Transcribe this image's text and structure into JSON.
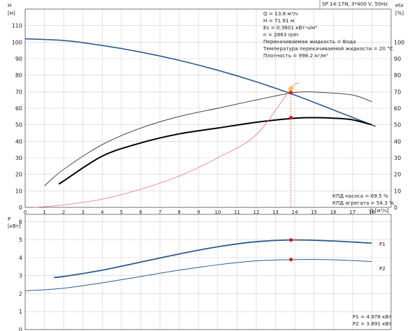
{
  "header": {
    "pump": "SP 14-17N, 3*400 V, 50Hz"
  },
  "info": [
    "Q = 13.8 м³/ч",
    "H = 71.91 м",
    "Es = 0.3601 кВт·ч/м³",
    "n = 2863 rpm",
    "Перекачиваемая жидкость = Вода",
    "Температура перекачиваемой жидкости = 20 °C",
    "Плотность = 998.2 кг/м³"
  ],
  "efficiency_labels": [
    "КПД насоса = 69.5 %",
    "КПД агрегата = 54.3 %"
  ],
  "power_labels": [
    "P1 = 4.978 кВт",
    "P2 = 3.891 кВт"
  ],
  "colors": {
    "head": "#2a5b8f",
    "efficiency": "#000000",
    "efficiency_thin": "#333333",
    "system": "#f08080",
    "power": "#2a5b8f",
    "duty_point": "#e0141e",
    "duty_marker": "#ffd000"
  },
  "chart_data": [
    {
      "type": "line",
      "xlabel": "Q [м³/ч]",
      "ylabel": "H [м]",
      "y2label": "eta [%]",
      "xlim": [
        0,
        19
      ],
      "ylim": [
        0,
        120
      ],
      "x_ticks": [
        0,
        1,
        2,
        3,
        4,
        5,
        6,
        7,
        8,
        9,
        10,
        11,
        12,
        13,
        14,
        15,
        16,
        17,
        18
      ],
      "y_ticks": [
        0,
        10,
        20,
        30,
        40,
        50,
        60,
        70,
        80,
        90,
        100,
        110
      ],
      "y2_ticks": [
        0,
        10,
        20,
        30,
        40,
        50,
        60,
        70,
        80,
        90,
        100
      ],
      "grid": true,
      "series": [
        {
          "role": "head",
          "x": [
            0,
            2,
            4,
            6,
            8,
            10,
            12,
            14,
            16,
            18.2
          ],
          "y": [
            102,
            101,
            98,
            94,
            89,
            83,
            76,
            68,
            59,
            49
          ]
        },
        {
          "role": "pump_efficiency",
          "x": [
            1,
            2,
            4,
            6,
            8,
            10,
            12,
            14,
            15.5,
            17,
            18
          ],
          "y": [
            13,
            23,
            38,
            48,
            55,
            60,
            65,
            69.5,
            69.5,
            68,
            64
          ]
        },
        {
          "role": "total_efficiency",
          "x": [
            1.8,
            2,
            4,
            6,
            8,
            10,
            12,
            14,
            15,
            16,
            17,
            18
          ],
          "y": [
            14.5,
            16,
            31,
            39,
            44.5,
            48,
            51.5,
            54,
            54.3,
            54,
            53,
            50
          ]
        },
        {
          "role": "system_curve",
          "x": [
            0.5,
            2,
            4,
            6,
            8,
            10,
            12,
            13.8,
            14.2
          ],
          "y": [
            0,
            1.5,
            5,
            11,
            19,
            30,
            44,
            71.91,
            75
          ]
        }
      ],
      "duty_point": {
        "x": 13.8,
        "head": 71.91,
        "pump_efficiency": 69.5,
        "total_efficiency": 54.3
      }
    },
    {
      "type": "line",
      "ylabel": "P [кВт]",
      "xlim": [
        0,
        19
      ],
      "ylim": [
        0,
        6.4
      ],
      "y_ticks": [
        0,
        1,
        2,
        3,
        4,
        5,
        6
      ],
      "grid": true,
      "series": [
        {
          "name": "P1",
          "x": [
            1.5,
            2,
            4,
            6,
            8,
            10,
            12,
            14,
            16,
            18
          ],
          "y": [
            2.9,
            2.95,
            3.3,
            3.75,
            4.2,
            4.6,
            4.88,
            4.98,
            4.92,
            4.8
          ]
        },
        {
          "name": "P2",
          "x": [
            0,
            2,
            4,
            6,
            8,
            10,
            12,
            14,
            16,
            18
          ],
          "y": [
            2.15,
            2.3,
            2.6,
            2.95,
            3.3,
            3.6,
            3.82,
            3.89,
            3.88,
            3.78
          ]
        }
      ],
      "duty_point": {
        "x": 13.8,
        "P1": 4.978,
        "P2": 3.891
      }
    }
  ]
}
